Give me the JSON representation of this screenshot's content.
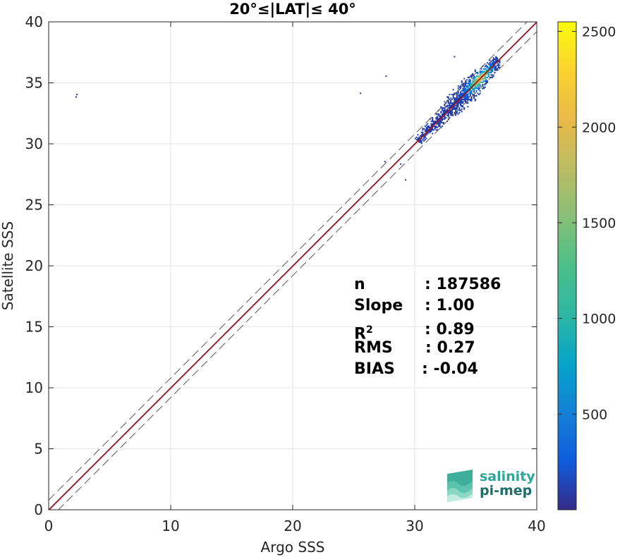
{
  "chart_data": {
    "type": "heatmap",
    "title": "20°≤|LAT|≤ 40°",
    "xlabel": "Argo SSS",
    "ylabel": "Satellite SSS",
    "xlim": [
      0,
      40
    ],
    "ylim": [
      0,
      40
    ],
    "xticks": [
      0,
      10,
      20,
      30,
      40
    ],
    "yticks": [
      0,
      5,
      10,
      15,
      20,
      25,
      30,
      35,
      40
    ],
    "grid": true,
    "reference_lines": {
      "identity": {
        "slope": 1,
        "intercept": 0,
        "color": "#000000",
        "style": "solid"
      },
      "fit": {
        "slope": 1.0,
        "intercept": -0.04,
        "color": "#b2182b",
        "style": "solid"
      },
      "bounds": [
        {
          "slope": 1,
          "intercept": 0.8,
          "color": "#555555",
          "style": "dashed"
        },
        {
          "slope": 1,
          "intercept": -0.8,
          "color": "#555555",
          "style": "dashed"
        }
      ]
    },
    "density_cluster": {
      "x_range": [
        30.0,
        37.0
      ],
      "y_range": [
        27.0,
        37.2
      ],
      "peak": [
        35.3,
        35.2
      ],
      "max_count": 2500
    },
    "outliers": [
      {
        "x": 2.2,
        "y": 33.8
      },
      {
        "x": 2.25,
        "y": 34.0
      },
      {
        "x": 27.6,
        "y": 35.5
      },
      {
        "x": 25.5,
        "y": 34.1
      },
      {
        "x": 33.2,
        "y": 37.1
      },
      {
        "x": 27.5,
        "y": 28.5
      },
      {
        "x": 28.8,
        "y": 28.3
      },
      {
        "x": 29.2,
        "y": 27.0
      }
    ],
    "colorbar": {
      "colormap": "parula",
      "min": 0,
      "max": 2550,
      "ticks": [
        500,
        1000,
        1500,
        2000,
        2500
      ]
    }
  },
  "stats": [
    {
      "key": "n",
      "value": ": 187586"
    },
    {
      "key": "Slope",
      "value": ": 1.00"
    },
    {
      "key": "R",
      "sup": "2",
      "value": ": 0.89"
    },
    {
      "key": "RMS",
      "value": ": 0.27"
    },
    {
      "key": "BIAS",
      "value": ": -0.04"
    }
  ],
  "logo": {
    "line1": "salinity",
    "line2": "pi-mep",
    "color1": "#2aa89a",
    "color2": "#1e6f6a"
  }
}
